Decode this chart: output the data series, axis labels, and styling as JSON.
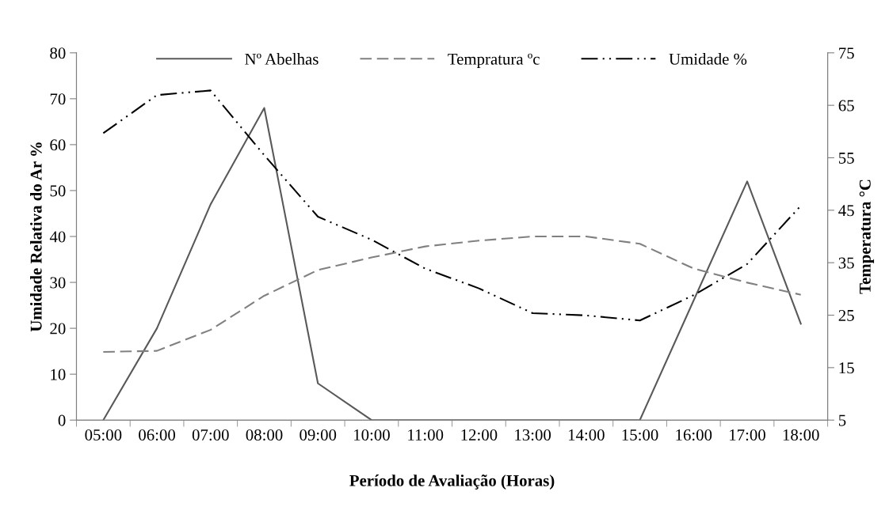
{
  "chart_data": {
    "type": "line",
    "xlabel": "Período de Avaliação (Horas)",
    "ylabel": "Umidade Relativa do Ar %",
    "y2label": "Temperatura °C",
    "categories": [
      "05:00",
      "06:00",
      "07:00",
      "08:00",
      "09:00",
      "10:00",
      "11:00",
      "12:00",
      "13:00",
      "14:00",
      "15:00",
      "16:00",
      "17:00",
      "18:00"
    ],
    "series": [
      {
        "name": "Nº Abelhas",
        "color": "#595959",
        "line_style": "solid",
        "values": [
          0,
          20,
          47,
          68,
          8,
          0,
          0,
          0,
          0,
          0,
          0,
          26,
          52,
          21
        ]
      },
      {
        "name": "Tempratura ºc",
        "color": "#808080",
        "line_style": "dashed",
        "axis": "y2",
        "values": [
          18,
          18.2,
          22.2,
          28.7,
          33.6,
          36,
          38.1,
          39.2,
          40,
          40,
          38.6,
          33.9,
          31.2,
          28.9
        ]
      },
      {
        "name": "Umidade %",
        "color": "#000000",
        "line_style": "dashdotdot",
        "values": [
          62.5,
          70.8,
          71.8,
          57.7,
          44.3,
          39.3,
          33,
          28.7,
          23.3,
          22.8,
          21.7,
          27.2,
          34,
          46.7
        ]
      }
    ],
    "ylim": [
      0,
      80
    ],
    "yticks": [
      0,
      10,
      20,
      30,
      40,
      50,
      60,
      70,
      80
    ],
    "y2lim": [
      5,
      75
    ],
    "y2ticks": [
      5,
      15,
      25,
      35,
      45,
      55,
      65,
      75
    ],
    "grid": false,
    "legend": "top",
    "marker": "none"
  }
}
